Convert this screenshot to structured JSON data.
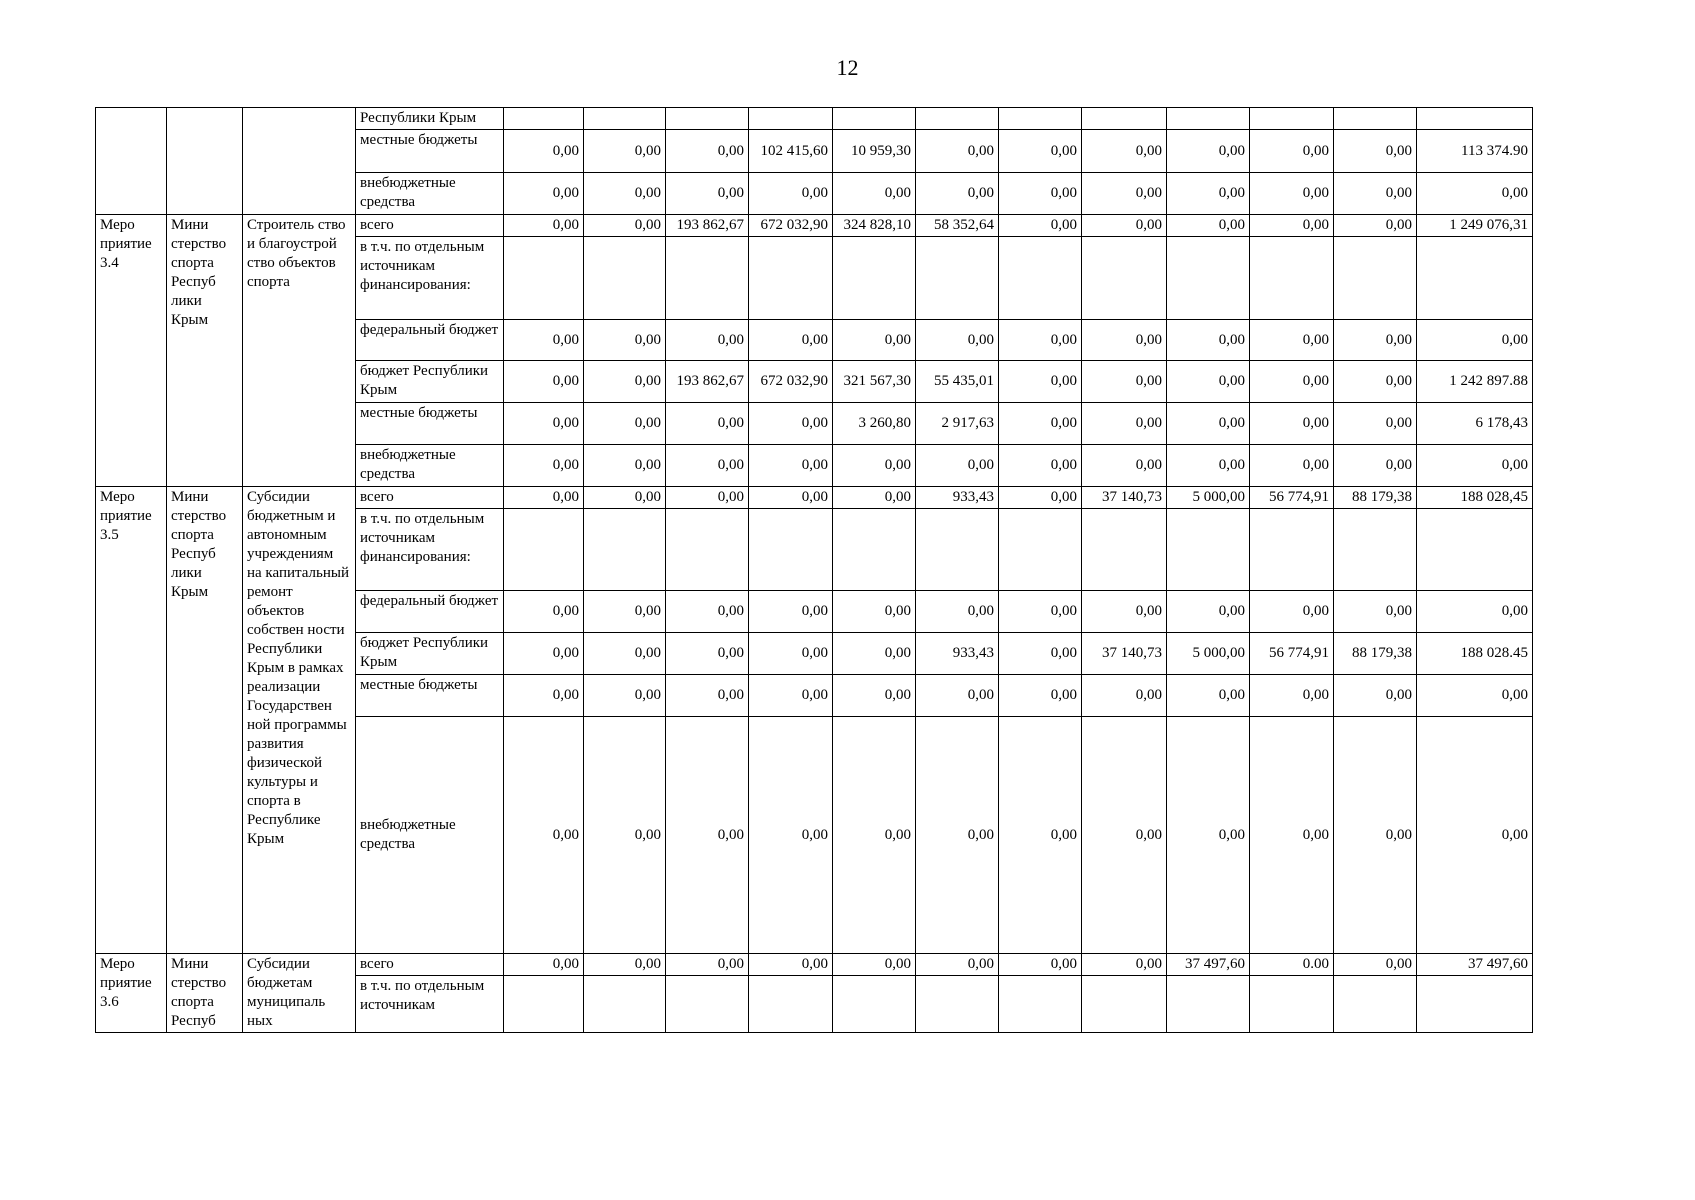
{
  "page": {
    "number": "12"
  },
  "table": {
    "groups": [
      {
        "id": "",
        "ministry": "",
        "description": "",
        "rows": [
          {
            "label": "Республики Крым",
            "values": null
          },
          {
            "label": "местные бюджеты",
            "values": [
              "0,00",
              "0,00",
              "0,00",
              "102 415,60",
              "10 959,30",
              "0,00",
              "0,00",
              "0,00",
              "0,00",
              "0,00",
              "0,00",
              "113 374.90"
            ]
          },
          {
            "label": "внебюджетные средства",
            "values": [
              "0,00",
              "0,00",
              "0,00",
              "0,00",
              "0,00",
              "0,00",
              "0,00",
              "0,00",
              "0,00",
              "0,00",
              "0,00",
              "0,00"
            ]
          }
        ]
      },
      {
        "id": "Меро приятие 3.4",
        "ministry": "Мини стерство спорта Респуб лики Крым",
        "description": "Строитель ство и благоустрой ство объектов спорта",
        "rows": [
          {
            "label": "всего",
            "values": [
              "0,00",
              "0,00",
              "193 862,67",
              "672 032,90",
              "324 828,10",
              "58 352,64",
              "0,00",
              "0,00",
              "0,00",
              "0,00",
              "0,00",
              "1 249 076,31"
            ]
          },
          {
            "label": "в т.ч. по отдельным источникам финансирования:",
            "values": null
          },
          {
            "label": "федеральный бюджет",
            "values": [
              "0,00",
              "0,00",
              "0,00",
              "0,00",
              "0,00",
              "0,00",
              "0,00",
              "0,00",
              "0,00",
              "0,00",
              "0,00",
              "0,00"
            ]
          },
          {
            "label": "бюджет Республики Крым",
            "values": [
              "0,00",
              "0,00",
              "193 862,67",
              "672 032,90",
              "321 567,30",
              "55 435,01",
              "0,00",
              "0,00",
              "0,00",
              "0,00",
              "0,00",
              "1 242 897.88"
            ]
          },
          {
            "label": "местные бюджеты",
            "values": [
              "0,00",
              "0,00",
              "0,00",
              "0,00",
              "3 260,80",
              "2 917,63",
              "0,00",
              "0,00",
              "0,00",
              "0,00",
              "0,00",
              "6 178,43"
            ]
          },
          {
            "label": "внебюджетные средства",
            "values": [
              "0,00",
              "0,00",
              "0,00",
              "0,00",
              "0,00",
              "0,00",
              "0,00",
              "0,00",
              "0,00",
              "0,00",
              "0,00",
              "0,00"
            ]
          }
        ]
      },
      {
        "id": "Меро приятие 3.5",
        "ministry": "Мини стерство спорта Респуб лики Крым",
        "description": "Субсидии бюджетным и автономным учреждениям на капитальный ремонт объектов собствен ности Республики Крым в рамках реализации Государствен ной программы развития физической культуры и спорта в Республике Крым",
        "rows": [
          {
            "label": "всего",
            "values": [
              "0,00",
              "0,00",
              "0,00",
              "0,00",
              "0,00",
              "933,43",
              "0,00",
              "37 140,73",
              "5 000,00",
              "56 774,91",
              "88 179,38",
              "188 028,45"
            ]
          },
          {
            "label": "в т.ч. по отдельным источникам финансирования:",
            "values": null
          },
          {
            "label": "федеральный бюджет",
            "values": [
              "0,00",
              "0,00",
              "0,00",
              "0,00",
              "0,00",
              "0,00",
              "0,00",
              "0,00",
              "0,00",
              "0,00",
              "0,00",
              "0,00"
            ]
          },
          {
            "label": "бюджет Республики Крым",
            "values": [
              "0,00",
              "0,00",
              "0,00",
              "0,00",
              "0,00",
              "933,43",
              "0,00",
              "37 140,73",
              "5 000,00",
              "56 774,91",
              "88 179,38",
              "188 028.45"
            ]
          },
          {
            "label": "местные бюджеты",
            "values": [
              "0,00",
              "0,00",
              "0,00",
              "0,00",
              "0,00",
              "0,00",
              "0,00",
              "0,00",
              "0,00",
              "0,00",
              "0,00",
              "0,00"
            ]
          },
          {
            "label": "внебюджетные средства",
            "values": [
              "0,00",
              "0,00",
              "0,00",
              "0,00",
              "0,00",
              "0,00",
              "0,00",
              "0,00",
              "0,00",
              "0,00",
              "0,00",
              "0,00"
            ]
          }
        ]
      },
      {
        "id": "Меро приятие 3.6",
        "ministry": "Мини стерство спорта Респуб",
        "description": "Субсидии бюджетам муниципаль ных",
        "rows": [
          {
            "label": "всего",
            "values": [
              "0,00",
              "0,00",
              "0,00",
              "0,00",
              "0,00",
              "0,00",
              "0,00",
              "0,00",
              "37 497,60",
              "0.00",
              "0,00",
              "37 497,60"
            ]
          },
          {
            "label": "в т.ч. по отдельным источникам",
            "values": null
          }
        ]
      }
    ]
  }
}
